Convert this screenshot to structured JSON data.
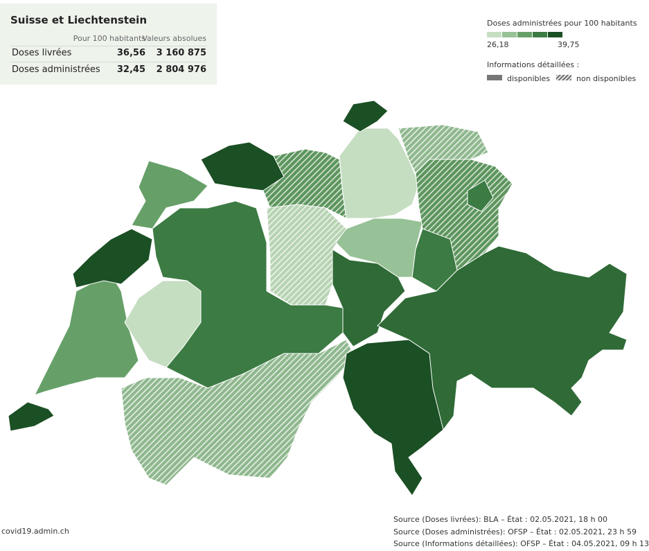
{
  "summary": {
    "title": "Suisse et Liechtenstein",
    "columns": [
      "Pour 100 habitants",
      "Valeurs absolues"
    ],
    "rows": [
      [
        "Doses livrées",
        "36,56",
        "3 160 875"
      ],
      [
        "Doses administrées",
        "32,45",
        "2 804 976"
      ]
    ]
  },
  "legend": {
    "title": "Doses administrées pour 100 habitants",
    "min": "26,18",
    "max": "39,75",
    "colors": [
      "#c5dec1",
      "#97c196",
      "#66a068",
      "#3c7b43",
      "#1b4f24"
    ],
    "details_title": "Informations détaillées :",
    "available": "disponibles",
    "unavailable": "non disponibles"
  },
  "footer": {
    "site": "covid19.admin.ch",
    "sources": [
      "Source (Doses livrées): BLA – État : 02.05.2021, 18 h 00",
      "Source (Doses administrées): OFSP – État : 02.05.2021, 23 h 59",
      "Source (Informations détaillées): OFSP – État : 04.05.2021, 09 h 13"
    ]
  }
}
